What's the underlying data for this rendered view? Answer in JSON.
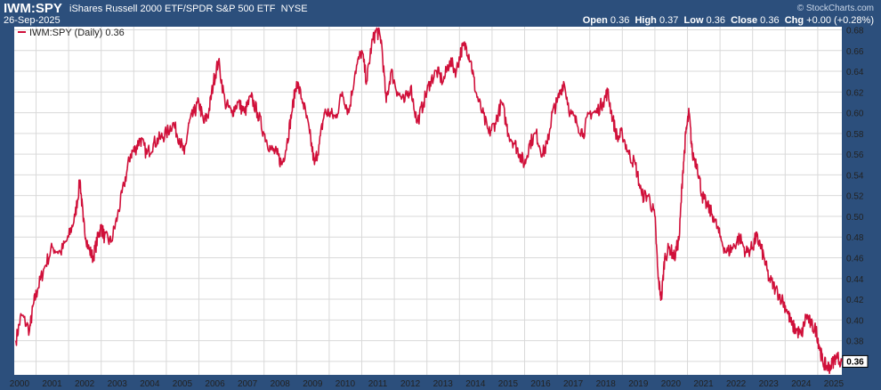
{
  "header": {
    "symbol": "IWM:SPY",
    "description": "iShares Russell 2000 ETF/SPDR S&P 500 ETF",
    "exchange": "NYSE",
    "date": "26-Sep-2025",
    "brand": "© StockCharts.com",
    "open_label": "Open",
    "open_value": "0.36",
    "high_label": "High",
    "high_value": "0.37",
    "low_label": "Low",
    "low_value": "0.36",
    "close_label": "Close",
    "close_value": "0.36",
    "chg_label": "Chg",
    "chg_value": "+0.00 (+0.28%)"
  },
  "legend": {
    "label": "IWM:SPY (Daily) 0.36"
  },
  "last_value_label": "0.36",
  "colors": {
    "frame": "#2c4f7c",
    "line": "#d0103a",
    "grid": "#d9d9d9",
    "plot_bg": "#ffffff"
  },
  "chart_data": {
    "type": "line",
    "title": "",
    "xlabel": "",
    "ylabel": "",
    "xlim": [
      2000.33,
      2025.74
    ],
    "ylim": [
      0.347,
      0.683
    ],
    "y_axis_position": "right",
    "grid": true,
    "legend_position": "top-left",
    "x_tick_labels": [
      "2000",
      "2001",
      "2002",
      "2003",
      "2004",
      "2005",
      "2006",
      "2007",
      "2008",
      "2009",
      "2010",
      "2011",
      "2012",
      "2013",
      "2014",
      "2015",
      "2016",
      "2017",
      "2018",
      "2019",
      "2020",
      "2021",
      "2022",
      "2023",
      "2024",
      "2025"
    ],
    "y_tick_labels": [
      "0.36",
      "0.38",
      "0.40",
      "0.42",
      "0.44",
      "0.46",
      "0.48",
      "0.50",
      "0.52",
      "0.54",
      "0.56",
      "0.58",
      "0.60",
      "0.62",
      "0.64",
      "0.66",
      "0.68"
    ],
    "series": [
      {
        "name": "IWM:SPY (Daily)",
        "x": [
          2000.38,
          2000.55,
          2000.8,
          2000.92,
          2001.05,
          2001.25,
          2001.5,
          2001.75,
          2002.0,
          2002.2,
          2002.35,
          2002.45,
          2002.6,
          2002.75,
          2002.9,
          2003.0,
          2003.1,
          2003.3,
          2003.5,
          2003.7,
          2003.9,
          2004.05,
          2004.2,
          2004.4,
          2004.6,
          2004.8,
          2005.0,
          2005.2,
          2005.4,
          2005.55,
          2005.7,
          2005.85,
          2006.0,
          2006.15,
          2006.3,
          2006.45,
          2006.6,
          2006.8,
          2007.0,
          2007.2,
          2007.4,
          2007.6,
          2007.8,
          2008.0,
          2008.2,
          2008.4,
          2008.55,
          2008.7,
          2008.85,
          2009.0,
          2009.2,
          2009.4,
          2009.55,
          2009.7,
          2009.85,
          2010.0,
          2010.2,
          2010.4,
          2010.6,
          2010.8,
          2011.0,
          2011.15,
          2011.3,
          2011.45,
          2011.6,
          2011.75,
          2011.9,
          2012.1,
          2012.3,
          2012.5,
          2012.7,
          2012.9,
          2013.1,
          2013.3,
          2013.5,
          2013.7,
          2013.9,
          2014.05,
          2014.2,
          2014.35,
          2014.5,
          2014.7,
          2014.9,
          2015.1,
          2015.3,
          2015.5,
          2015.7,
          2015.85,
          2016.0,
          2016.15,
          2016.35,
          2016.55,
          2016.7,
          2016.85,
          2017.0,
          2017.2,
          2017.4,
          2017.6,
          2017.8,
          2018.0,
          2018.2,
          2018.4,
          2018.55,
          2018.7,
          2018.85,
          2019.0,
          2019.2,
          2019.4,
          2019.6,
          2019.8,
          2020.0,
          2020.1,
          2020.2,
          2020.3,
          2020.45,
          2020.6,
          2020.75,
          2020.85,
          2020.95,
          2021.05,
          2021.15,
          2021.3,
          2021.45,
          2021.6,
          2021.8,
          2022.0,
          2022.2,
          2022.4,
          2022.6,
          2022.8,
          2023.0,
          2023.1,
          2023.2,
          2023.35,
          2023.5,
          2023.7,
          2023.9,
          2024.05,
          2024.2,
          2024.35,
          2024.5,
          2024.65,
          2024.8,
          2024.95,
          2025.05,
          2025.15,
          2025.27,
          2025.4,
          2025.55,
          2025.74
        ],
        "y": [
          0.38,
          0.405,
          0.39,
          0.415,
          0.43,
          0.45,
          0.47,
          0.465,
          0.48,
          0.5,
          0.535,
          0.495,
          0.47,
          0.46,
          0.48,
          0.49,
          0.48,
          0.475,
          0.5,
          0.53,
          0.56,
          0.565,
          0.575,
          0.56,
          0.57,
          0.575,
          0.58,
          0.59,
          0.575,
          0.56,
          0.59,
          0.6,
          0.61,
          0.59,
          0.6,
          0.63,
          0.65,
          0.61,
          0.6,
          0.61,
          0.6,
          0.615,
          0.6,
          0.58,
          0.565,
          0.56,
          0.55,
          0.57,
          0.6,
          0.63,
          0.61,
          0.58,
          0.55,
          0.57,
          0.6,
          0.6,
          0.595,
          0.62,
          0.6,
          0.64,
          0.66,
          0.63,
          0.665,
          0.68,
          0.67,
          0.61,
          0.64,
          0.62,
          0.61,
          0.625,
          0.59,
          0.61,
          0.63,
          0.64,
          0.63,
          0.65,
          0.64,
          0.66,
          0.665,
          0.65,
          0.62,
          0.6,
          0.58,
          0.59,
          0.61,
          0.58,
          0.57,
          0.56,
          0.55,
          0.57,
          0.58,
          0.56,
          0.57,
          0.6,
          0.61,
          0.63,
          0.6,
          0.59,
          0.58,
          0.6,
          0.6,
          0.61,
          0.62,
          0.595,
          0.575,
          0.58,
          0.56,
          0.55,
          0.52,
          0.52,
          0.5,
          0.44,
          0.42,
          0.46,
          0.47,
          0.46,
          0.48,
          0.54,
          0.58,
          0.6,
          0.56,
          0.55,
          0.52,
          0.51,
          0.5,
          0.48,
          0.465,
          0.47,
          0.48,
          0.465,
          0.47,
          0.48,
          0.475,
          0.46,
          0.44,
          0.43,
          0.42,
          0.41,
          0.395,
          0.39,
          0.385,
          0.405,
          0.395,
          0.39,
          0.375,
          0.36,
          0.355,
          0.355,
          0.365,
          0.36
        ]
      }
    ]
  }
}
